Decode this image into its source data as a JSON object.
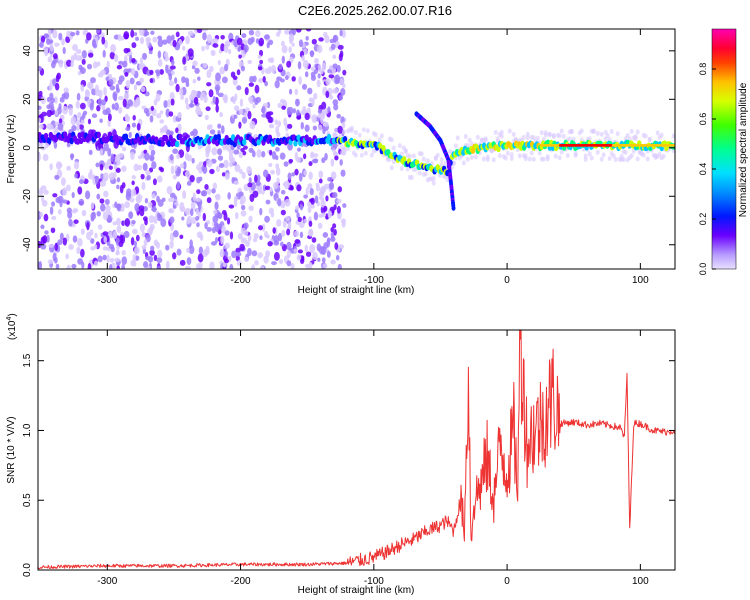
{
  "title": "C2E6.2025.262.00.07.R16",
  "chart_data": [
    {
      "type": "heatmap",
      "xlabel": "Height of straight line (km)",
      "ylabel": "Frequency (Hz)",
      "xlim": [
        -352,
        126
      ],
      "ylim": [
        -50,
        49
      ],
      "xticks": [
        -300,
        -200,
        -100,
        0,
        100
      ],
      "xtick_labels": [
        "-300",
        "-200",
        "-100",
        "0",
        "100"
      ],
      "yticks": [
        -40,
        -20,
        0,
        20,
        40
      ],
      "ytick_labels": [
        "-40",
        "-20",
        "0",
        "20",
        "40"
      ],
      "colorbar": {
        "label": "Normalized spectral amplitude",
        "range": [
          0,
          0.96
        ],
        "ticks": [
          0.0,
          0.2,
          0.4,
          0.6,
          0.8
        ],
        "tick_labels": [
          "0.0",
          "0.2",
          "0.4",
          "0.6",
          "0.8"
        ],
        "colormap": [
          "#d8c8ff",
          "#9d7bff",
          "#6a00ff",
          "#0018ff",
          "#00c8ff",
          "#00ff80",
          "#c8ff00",
          "#ffc800",
          "#ff0000",
          "#ff00c8"
        ]
      },
      "noise_region_x": [
        -352,
        -122
      ],
      "ridge": [
        {
          "x": -352,
          "y": 4
        },
        {
          "x": -300,
          "y": 4
        },
        {
          "x": -250,
          "y": 3
        },
        {
          "x": -200,
          "y": 3
        },
        {
          "x": -160,
          "y": 3
        },
        {
          "x": -130,
          "y": 3
        },
        {
          "x": -110,
          "y": 2
        },
        {
          "x": -95,
          "y": 0
        },
        {
          "x": -85,
          "y": -3
        },
        {
          "x": -75,
          "y": -6
        },
        {
          "x": -60,
          "y": -8
        },
        {
          "x": -45,
          "y": -10
        },
        {
          "x": -42,
          "y": -6
        },
        {
          "x": -40,
          "y": -2
        },
        {
          "x": -30,
          "y": -1
        },
        {
          "x": -15,
          "y": 0
        },
        {
          "x": 0,
          "y": 1
        },
        {
          "x": 10,
          "y": 1
        },
        {
          "x": 20,
          "y": 1
        },
        {
          "x": 26,
          "y": 1
        },
        {
          "x": 50,
          "y": 1
        },
        {
          "x": 90,
          "y": 1
        },
        {
          "x": 126,
          "y": 1
        }
      ],
      "branch": [
        {
          "x": -68,
          "y": 14
        },
        {
          "x": -58,
          "y": 9
        },
        {
          "x": -50,
          "y": 3
        },
        {
          "x": -44,
          "y": -5
        },
        {
          "x": -42,
          "y": -15
        },
        {
          "x": -40,
          "y": -26
        }
      ]
    },
    {
      "type": "line",
      "xlabel": "Height of straight line (km)",
      "ylabel": "SNR (10 * V/V)",
      "scale_label": "(x10",
      "scale_exponent": "4",
      "scale_suffix": ")",
      "color": "#ee3333",
      "xlim": [
        -352,
        126
      ],
      "ylim": [
        0,
        1.72
      ],
      "xticks": [
        -300,
        -200,
        -100,
        0,
        100
      ],
      "xtick_labels": [
        "-300",
        "-200",
        "-100",
        "0",
        "100"
      ],
      "yticks": [
        0.0,
        0.5,
        1.0,
        1.5
      ],
      "ytick_labels": [
        "0.0",
        "0.5",
        "1.0",
        "1.5"
      ],
      "x": [
        -352,
        -300,
        -250,
        -200,
        -150,
        -120,
        -110,
        -100,
        -90,
        -80,
        -70,
        -60,
        -50,
        -45,
        -40,
        -35,
        -32,
        -29,
        -27,
        -25,
        -20,
        -15,
        -10,
        -5,
        0,
        5,
        8,
        10,
        15,
        20,
        25,
        30,
        35,
        40,
        50,
        60,
        70,
        80,
        85,
        88,
        90,
        92,
        95,
        100,
        110,
        120,
        126
      ],
      "values": [
        0.02,
        0.03,
        0.03,
        0.04,
        0.04,
        0.05,
        0.07,
        0.09,
        0.13,
        0.18,
        0.22,
        0.28,
        0.32,
        0.35,
        0.28,
        0.5,
        0.3,
        1.45,
        0.18,
        0.5,
        0.6,
        0.8,
        0.5,
        0.9,
        0.7,
        1.0,
        0.6,
        1.72,
        0.9,
        1.0,
        1.05,
        1.15,
        1.25,
        1.05,
        1.06,
        1.04,
        1.05,
        1.03,
        1.02,
        0.95,
        1.4,
        0.28,
        1.05,
        1.05,
        1.0,
        0.99,
        1.0
      ]
    }
  ]
}
